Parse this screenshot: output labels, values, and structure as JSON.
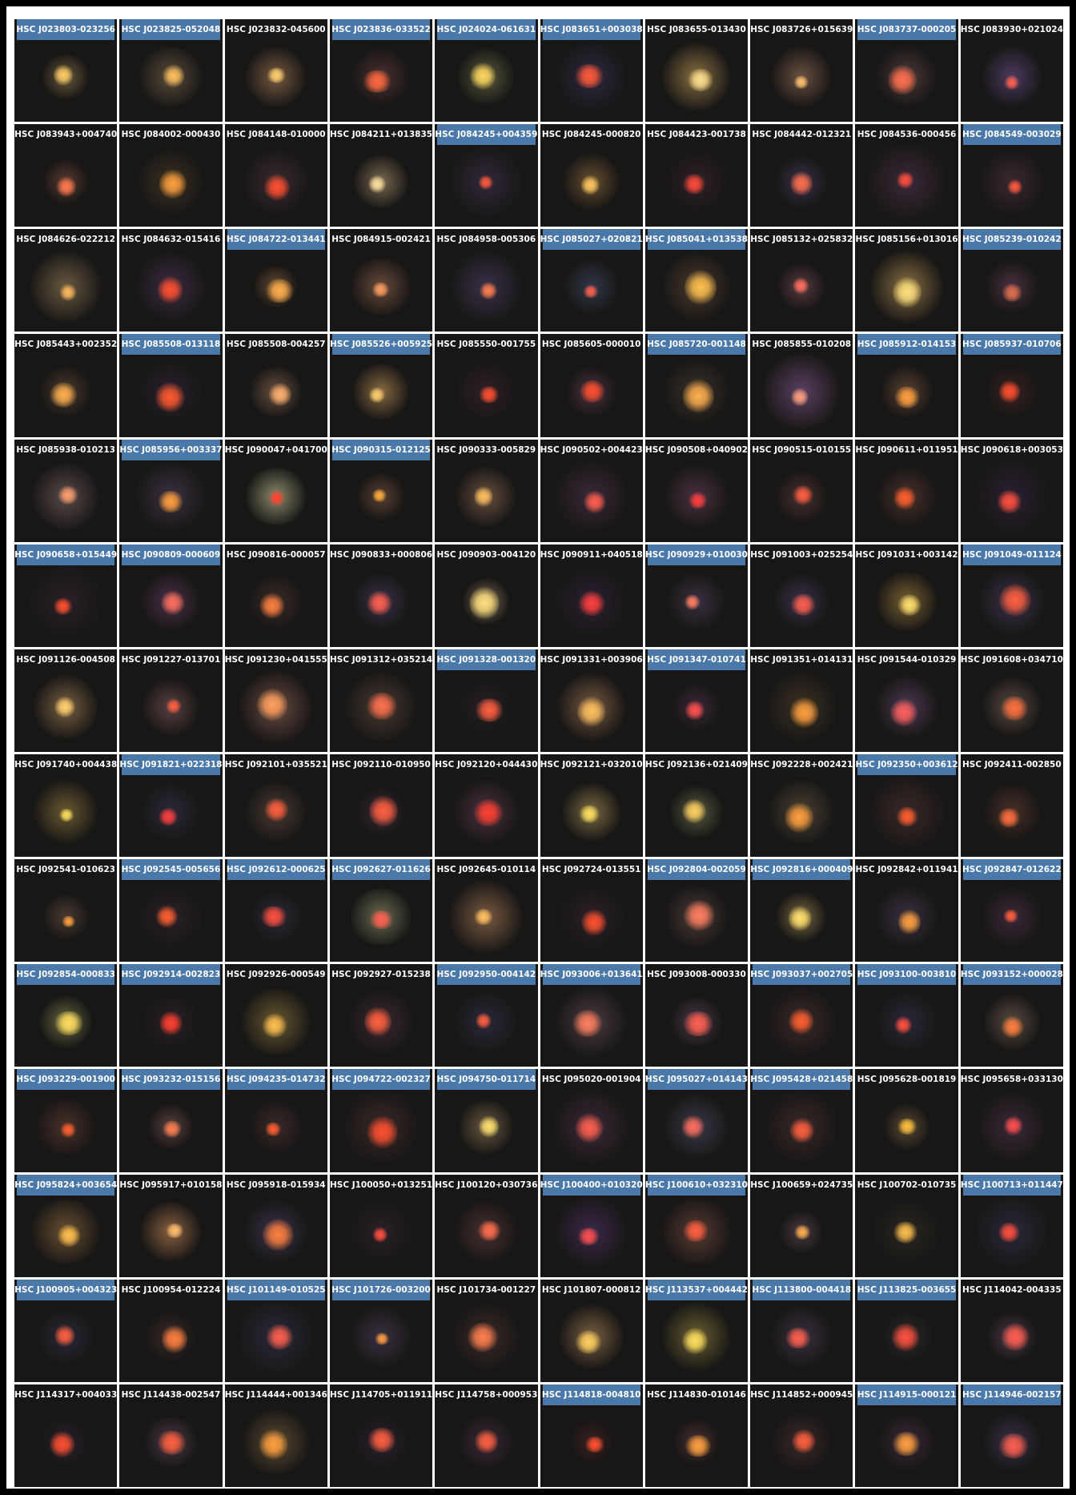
{
  "grid": {
    "columns": 10,
    "highlight_color": "#4a78a8",
    "cells": [
      {
        "label": "HSC J023803-023256",
        "hl": true,
        "core": "#ffcc66",
        "env": "#6a5a3a"
      },
      {
        "label": "HSC J023825-052048",
        "hl": true,
        "core": "#ffc060",
        "env": "#5a4c3a"
      },
      {
        "label": "HSC J023832-045600",
        "hl": false,
        "core": "#ffd070",
        "env": "#7a5a40"
      },
      {
        "label": "HSC J023836-033522",
        "hl": true,
        "core": "#ff6a40",
        "env": "#4a3030"
      },
      {
        "label": "HSC J024024-061631",
        "hl": true,
        "core": "#ffd860",
        "env": "#5a5a3c"
      },
      {
        "label": "HSC J083651+003038",
        "hl": true,
        "core": "#ff5a3a",
        "env": "#2e2840"
      },
      {
        "label": "HSC J083655-013430",
        "hl": false,
        "core": "#ffe090",
        "env": "#8a7040"
      },
      {
        "label": "HSC J083726+015639",
        "hl": false,
        "core": "#ffc070",
        "env": "#6a5040"
      },
      {
        "label": "HSC J083737-000205",
        "hl": true,
        "core": "#ff7050",
        "env": "#4a3838"
      },
      {
        "label": "HSC J083930+021024",
        "hl": false,
        "core": "#ff6050",
        "env": "#4a3a60"
      },
      {
        "label": "HSC J083943+004740",
        "hl": false,
        "core": "#ff7a50",
        "env": "#5a3a30"
      },
      {
        "label": "HSC J084002-000430",
        "hl": false,
        "core": "#ffa040",
        "env": "#3a3020"
      },
      {
        "label": "HSC J084148-010000",
        "hl": false,
        "core": "#ff5030",
        "env": "#3a2a30"
      },
      {
        "label": "HSC J084211+013835",
        "hl": false,
        "core": "#ffe0a0",
        "env": "#7a6a50"
      },
      {
        "label": "HSC J084245+004359",
        "hl": true,
        "core": "#ff5a40",
        "env": "#302838"
      },
      {
        "label": "HSC J084245-000820",
        "hl": false,
        "core": "#ffc860",
        "env": "#6a5030"
      },
      {
        "label": "HSC J084423-001738",
        "hl": false,
        "core": "#ff4a3a",
        "env": "#302028"
      },
      {
        "label": "HSC J084442-012321",
        "hl": false,
        "core": "#ff7050",
        "env": "#3a3048"
      },
      {
        "label": "HSC J084536-000456",
        "hl": false,
        "core": "#ff5040",
        "env": "#3a2838"
      },
      {
        "label": "HSC J084549-003029",
        "hl": true,
        "core": "#ff5a40",
        "env": "#3a2830"
      },
      {
        "label": "HSC J084626-022212",
        "hl": false,
        "core": "#ffb860",
        "env": "#6a5a40"
      },
      {
        "label": "HSC J084632-015416",
        "hl": false,
        "core": "#ff5030",
        "env": "#3a2a40"
      },
      {
        "label": "HSC J084722-013441",
        "hl": true,
        "core": "#ffb050",
        "env": "#6a4a30"
      },
      {
        "label": "HSC J084915-002421",
        "hl": false,
        "core": "#ffa060",
        "env": "#6a4a3a"
      },
      {
        "label": "HSC J084958-005306",
        "hl": false,
        "core": "#ff8050",
        "env": "#3a3048"
      },
      {
        "label": "HSC J085027+020821",
        "hl": true,
        "core": "#ff6050",
        "env": "#303848"
      },
      {
        "label": "HSC J085041+013538",
        "hl": true,
        "core": "#ffc050",
        "env": "#4a3a2a"
      },
      {
        "label": "HSC J085132+025832",
        "hl": false,
        "core": "#ff7060",
        "env": "#5a3a40"
      },
      {
        "label": "HSC J085156+013016",
        "hl": false,
        "core": "#ffe080",
        "env": "#8a7040"
      },
      {
        "label": "HSC J085239-010242",
        "hl": true,
        "core": "#e07050",
        "env": "#4a3040"
      },
      {
        "label": "HSC J085443+002352",
        "hl": false,
        "core": "#ffb050",
        "env": "#4a3a2a"
      },
      {
        "label": "HSC J085508-013118",
        "hl": true,
        "core": "#ff5a30",
        "env": "#2a2030"
      },
      {
        "label": "HSC J085508-004257",
        "hl": false,
        "core": "#ffb070",
        "env": "#6a5040"
      },
      {
        "label": "HSC J085526+005925",
        "hl": true,
        "core": "#ffd070",
        "env": "#8a6a40"
      },
      {
        "label": "HSC J085550-001755",
        "hl": false,
        "core": "#ff5030",
        "env": "#302028"
      },
      {
        "label": "HSC J085605-000010",
        "hl": false,
        "core": "#ff5030",
        "env": "#4a3040"
      },
      {
        "label": "HSC J085720-001148",
        "hl": true,
        "core": "#ffb050",
        "env": "#3a3028"
      },
      {
        "label": "HSC J085855-010208",
        "hl": false,
        "core": "#ffa080",
        "env": "#5a4060"
      },
      {
        "label": "HSC J085912-014153",
        "hl": true,
        "core": "#ffa040",
        "env": "#5a4030"
      },
      {
        "label": "HSC J085937-010706",
        "hl": true,
        "core": "#ff5030",
        "env": "#3a2020"
      },
      {
        "label": "HSC J085938-010213",
        "hl": false,
        "core": "#ffa070",
        "env": "#5a4a4a"
      },
      {
        "label": "HSC J085956+003337",
        "hl": true,
        "core": "#ffa040",
        "env": "#3a3040"
      },
      {
        "label": "HSC J090047+041700",
        "hl": false,
        "core": "#ff4030",
        "env": "#8a8a6a"
      },
      {
        "label": "HSC J090315-012125",
        "hl": true,
        "core": "#ffb040",
        "env": "#5a4030"
      },
      {
        "label": "HSC J090333-005829",
        "hl": false,
        "core": "#ffc060",
        "env": "#6a5040"
      },
      {
        "label": "HSC J090502+004423",
        "hl": false,
        "core": "#ff6050",
        "env": "#3a2838"
      },
      {
        "label": "HSC J090508+040902",
        "hl": false,
        "core": "#ff4040",
        "env": "#4a3040"
      },
      {
        "label": "HSC J090515-010155",
        "hl": false,
        "core": "#ff6040",
        "env": "#4a3030"
      },
      {
        "label": "HSC J090611+011951",
        "hl": false,
        "core": "#ff6030",
        "env": "#4a3028"
      },
      {
        "label": "HSC J090618+003053",
        "hl": false,
        "core": "#ff5040",
        "env": "#2a2030"
      },
      {
        "label": "HSC J090658+015449",
        "hl": true,
        "core": "#ff5030",
        "env": "#2a2028"
      },
      {
        "label": "HSC J090809-000609",
        "hl": true,
        "core": "#ff7060",
        "env": "#4a3048"
      },
      {
        "label": "HSC J090816-000057",
        "hl": false,
        "core": "#ff8040",
        "env": "#3a2a28"
      },
      {
        "label": "HSC J090833+000806",
        "hl": false,
        "core": "#ff6050",
        "env": "#3a3048"
      },
      {
        "label": "HSC J090903-004120",
        "hl": false,
        "core": "#ffe080",
        "env": "#7a6a50"
      },
      {
        "label": "HSC J090911+040518",
        "hl": false,
        "core": "#ff4040",
        "env": "#2a2030"
      },
      {
        "label": "HSC J090929+010030",
        "hl": true,
        "core": "#ff8060",
        "env": "#3a3040"
      },
      {
        "label": "HSC J091003+025254",
        "hl": false,
        "core": "#ff6050",
        "env": "#3a3048"
      },
      {
        "label": "HSC J091031+003142",
        "hl": false,
        "core": "#ffe070",
        "env": "#7a6030"
      },
      {
        "label": "HSC J091049-011124",
        "hl": true,
        "core": "#ff6040",
        "env": "#3a3048"
      },
      {
        "label": "HSC J091126-004508",
        "hl": false,
        "core": "#ffd070",
        "env": "#7a6040"
      },
      {
        "label": "HSC J091227-013701",
        "hl": false,
        "core": "#ff6040",
        "env": "#5a4040"
      },
      {
        "label": "HSC J091230+041555",
        "hl": false,
        "core": "#ffa060",
        "env": "#6a4a40"
      },
      {
        "label": "HSC J091312+035214",
        "hl": false,
        "core": "#ff7050",
        "env": "#4a3a30"
      },
      {
        "label": "HSC J091328-001320",
        "hl": true,
        "core": "#ff6040",
        "env": "#2a2028"
      },
      {
        "label": "HSC J091331+003906",
        "hl": false,
        "core": "#ffc060",
        "env": "#7a5a40"
      },
      {
        "label": "HSC J091347-010741",
        "hl": true,
        "core": "#ff5050",
        "env": "#3a2838"
      },
      {
        "label": "HSC J091351+014131",
        "hl": false,
        "core": "#ffa040",
        "env": "#3a3020"
      },
      {
        "label": "HSC J091544-010329",
        "hl": false,
        "core": "#ff6060",
        "env": "#4a3850"
      },
      {
        "label": "HSC J091608+034710",
        "hl": false,
        "core": "#ff7040",
        "env": "#5a4a40"
      },
      {
        "label": "HSC J091740+004438",
        "hl": false,
        "core": "#ffe060",
        "env": "#6a5a30"
      },
      {
        "label": "HSC J091821+022318",
        "hl": true,
        "core": "#ff4040",
        "env": "#2a2838"
      },
      {
        "label": "HSC J092101+035521",
        "hl": false,
        "core": "#ff6040",
        "env": "#4a3a30"
      },
      {
        "label": "HSC J092110-010950",
        "hl": false,
        "core": "#ff6040",
        "env": "#3a2838"
      },
      {
        "label": "HSC J092120+044430",
        "hl": false,
        "core": "#ff4030",
        "env": "#4a3040"
      },
      {
        "label": "HSC J092121+032010",
        "hl": false,
        "core": "#ffe060",
        "env": "#7a6a40"
      },
      {
        "label": "HSC J092136+021409",
        "hl": false,
        "core": "#ffd060",
        "env": "#5a5a40"
      },
      {
        "label": "HSC J092228+002421",
        "hl": false,
        "core": "#ffa040",
        "env": "#4a4030"
      },
      {
        "label": "HSC J092350+003612",
        "hl": true,
        "core": "#ff6030",
        "env": "#3a2828"
      },
      {
        "label": "HSC J092411-002850",
        "hl": false,
        "core": "#ff7040",
        "env": "#4a3028"
      },
      {
        "label": "HSC J092541-010623",
        "hl": false,
        "core": "#ffa040",
        "env": "#4a3a30"
      },
      {
        "label": "HSC J092545-005656",
        "hl": true,
        "core": "#ff6030",
        "env": "#2a2028"
      },
      {
        "label": "HSC J092612-000625",
        "hl": true,
        "core": "#ff5040",
        "env": "#2a2838"
      },
      {
        "label": "HSC J092627-011626",
        "hl": true,
        "core": "#ff6050",
        "env": "#6a6a50"
      },
      {
        "label": "HSC J092645-010114",
        "hl": false,
        "core": "#ffc060",
        "env": "#7a5a40"
      },
      {
        "label": "HSC J092724-013551",
        "hl": false,
        "core": "#ff5030",
        "env": "#2a2028"
      },
      {
        "label": "HSC J092804-002059",
        "hl": true,
        "core": "#ff8060",
        "env": "#4a3a38"
      },
      {
        "label": "HSC J092816+000409",
        "hl": true,
        "core": "#ffe070",
        "env": "#7a6a40"
      },
      {
        "label": "HSC J092842+011941",
        "hl": false,
        "core": "#ffa040",
        "env": "#3a3040"
      },
      {
        "label": "HSC J092847-012622",
        "hl": true,
        "core": "#ff6040",
        "env": "#3a2838"
      },
      {
        "label": "HSC J092854-000833",
        "hl": true,
        "core": "#ffe060",
        "env": "#6a6a40"
      },
      {
        "label": "HSC J092914-002823",
        "hl": true,
        "core": "#ff4030",
        "env": "#2a2028"
      },
      {
        "label": "HSC J092926-000549",
        "hl": false,
        "core": "#ffc050",
        "env": "#6a5a30"
      },
      {
        "label": "HSC J092927-015238",
        "hl": false,
        "core": "#ff6040",
        "env": "#3a2830"
      },
      {
        "label": "HSC J092950-004142",
        "hl": true,
        "core": "#ff6040",
        "env": "#2a2838"
      },
      {
        "label": "HSC J093006+013641",
        "hl": true,
        "core": "#ff8060",
        "env": "#4a3a40"
      },
      {
        "label": "HSC J093008-000330",
        "hl": false,
        "core": "#ff6050",
        "env": "#4a3848"
      },
      {
        "label": "HSC J093037+002705",
        "hl": true,
        "core": "#ff6030",
        "env": "#3a2828"
      },
      {
        "label": "HSC J093100-003810",
        "hl": true,
        "core": "#ff5040",
        "env": "#2a2838"
      },
      {
        "label": "HSC J093152+000028",
        "hl": true,
        "core": "#ff8040",
        "env": "#5a4a40"
      },
      {
        "label": "HSC J093229-001900",
        "hl": true,
        "core": "#ff6030",
        "env": "#4a3028"
      },
      {
        "label": "HSC J093232-015156",
        "hl": true,
        "core": "#ff8050",
        "env": "#5a4040"
      },
      {
        "label": "HSC J094235-014732",
        "hl": true,
        "core": "#ff6030",
        "env": "#3a2828"
      },
      {
        "label": "HSC J094722-002327",
        "hl": true,
        "core": "#ff5030",
        "env": "#3a2828"
      },
      {
        "label": "HSC J094750-011714",
        "hl": true,
        "core": "#ffe070",
        "env": "#6a5a40"
      },
      {
        "label": "HSC J095020-001904",
        "hl": false,
        "core": "#ff6050",
        "env": "#3a2838"
      },
      {
        "label": "HSC J095027+014143",
        "hl": true,
        "core": "#ff7060",
        "env": "#3a3848"
      },
      {
        "label": "HSC J095428+021458",
        "hl": true,
        "core": "#ff6040",
        "env": "#3a2828"
      },
      {
        "label": "HSC J095628-001819",
        "hl": false,
        "core": "#ffc040",
        "env": "#5a4a30"
      },
      {
        "label": "HSC J095658+033130",
        "hl": false,
        "core": "#ff5050",
        "env": "#3a2838"
      },
      {
        "label": "HSC J095824+003654",
        "hl": true,
        "core": "#ffc050",
        "env": "#6a5030"
      },
      {
        "label": "HSC J095917+010158",
        "hl": false,
        "core": "#ffc070",
        "env": "#8a6040"
      },
      {
        "label": "HSC J095918-015934",
        "hl": false,
        "core": "#ff8040",
        "env": "#3a3048"
      },
      {
        "label": "HSC J100050+013251",
        "hl": false,
        "core": "#ff5040",
        "env": "#2a2028"
      },
      {
        "label": "HSC J100120+030736",
        "hl": false,
        "core": "#ff7050",
        "env": "#4a3030"
      },
      {
        "label": "HSC J100400+010320",
        "hl": true,
        "core": "#ff5050",
        "env": "#3a2848"
      },
      {
        "label": "HSC J100610+032310",
        "hl": true,
        "core": "#ff6040",
        "env": "#5a3a30"
      },
      {
        "label": "HSC J100659+024735",
        "hl": false,
        "core": "#ffb050",
        "env": "#4a3a40"
      },
      {
        "label": "HSC J100702-010735",
        "hl": false,
        "core": "#ffc050",
        "env": "#2a2620"
      },
      {
        "label": "HSC J100713+011447",
        "hl": true,
        "core": "#ff5040",
        "env": "#2a2838"
      },
      {
        "label": "HSC J100905+004323",
        "hl": true,
        "core": "#ff6040",
        "env": "#2a2838"
      },
      {
        "label": "HSC J100954-012224",
        "hl": false,
        "core": "#ff8040",
        "env": "#3a2a28"
      },
      {
        "label": "HSC J101149-010525",
        "hl": true,
        "core": "#ff6050",
        "env": "#2a2838"
      },
      {
        "label": "HSC J101726-003200",
        "hl": true,
        "core": "#ffa040",
        "env": "#3a3040"
      },
      {
        "label": "HSC J101734-001227",
        "hl": false,
        "core": "#ff8050",
        "env": "#3a2a28"
      },
      {
        "label": "HSC J101807-000812",
        "hl": false,
        "core": "#ffd060",
        "env": "#7a6040"
      },
      {
        "label": "HSC J113537+004442",
        "hl": true,
        "core": "#ffe060",
        "env": "#6a6030"
      },
      {
        "label": "HSC J113800-004418",
        "hl": true,
        "core": "#ff6050",
        "env": "#3a3040"
      },
      {
        "label": "HSC J113825-003655",
        "hl": true,
        "core": "#ff5040",
        "env": "#2a2828"
      },
      {
        "label": "HSC J114042-004335",
        "hl": false,
        "core": "#ff6050",
        "env": "#4a3848"
      },
      {
        "label": "HSC J114317+004033",
        "hl": false,
        "core": "#ff5030",
        "env": "#2a2030"
      },
      {
        "label": "HSC J114438-002547",
        "hl": false,
        "core": "#ff6040",
        "env": "#4a3848"
      },
      {
        "label": "HSC J114444+001346",
        "hl": false,
        "core": "#ffa040",
        "env": "#5a4a30"
      },
      {
        "label": "HSC J114705+011911",
        "hl": false,
        "core": "#ff6040",
        "env": "#2a2030"
      },
      {
        "label": "HSC J114758+000953",
        "hl": false,
        "core": "#ff6040",
        "env": "#3a2838"
      },
      {
        "label": "HSC J114818-004810",
        "hl": true,
        "core": "#ff5030",
        "env": "#3a2020"
      },
      {
        "label": "HSC J114830-010146",
        "hl": false,
        "core": "#ffa040",
        "env": "#4a3030"
      },
      {
        "label": "HSC J114852+000945",
        "hl": false,
        "core": "#ff6040",
        "env": "#3a2828"
      },
      {
        "label": "HSC J114915-000121",
        "hl": true,
        "core": "#ffa040",
        "env": "#3a2838"
      },
      {
        "label": "HSC J114946-002157",
        "hl": true,
        "core": "#ff6050",
        "env": "#3a3048"
      }
    ]
  }
}
